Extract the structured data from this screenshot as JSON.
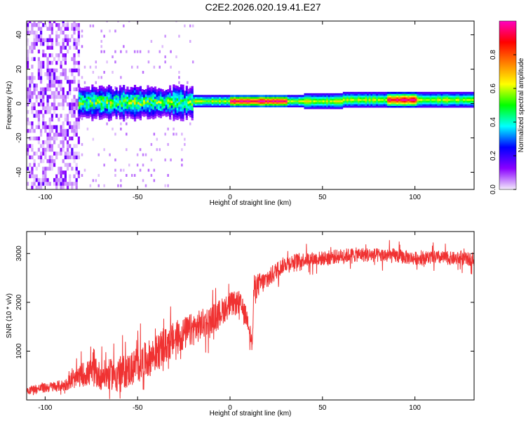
{
  "title": "C2E2.2026.020.19.41.E27",
  "chart_data": [
    {
      "type": "heatmap",
      "xlabel": "Height of straight line (km)",
      "ylabel": "Frequency (Hz)",
      "xlim": [
        -110,
        132
      ],
      "ylim": [
        -50,
        48
      ],
      "x_ticks": [
        -100,
        -50,
        0,
        50,
        100
      ],
      "y_ticks": [
        -40,
        -20,
        0,
        20,
        40
      ],
      "grid": false,
      "colorbar": {
        "label": "Normalized spectral amplitude",
        "range": [
          0,
          1
        ],
        "ticks": [
          0.0,
          0.2,
          0.4,
          0.6,
          0.8
        ],
        "colormap": "rainbow",
        "colors": [
          "#f4ecfb",
          "#8a00ff",
          "#0000ff",
          "#00ffff",
          "#00ff00",
          "#ffff00",
          "#ff8000",
          "#ff0000",
          "#ff00c0"
        ]
      },
      "features": {
        "noise_region_km": [
          -110,
          -82
        ],
        "noise_freq_hz": [
          -50,
          48
        ],
        "wide_band_km": [
          -82,
          -20
        ],
        "wide_band_halfwidth_hz": 8,
        "narrow_line_km": [
          -20,
          132
        ],
        "narrow_line_freq_hz": 1,
        "strong_segments_km": [
          [
            0,
            30
          ],
          [
            85,
            100
          ]
        ]
      }
    },
    {
      "type": "line",
      "xlabel": "Height of straight line (km)",
      "ylabel": "SNR (10 * v/v)",
      "xlim": [
        -110,
        132
      ],
      "ylim": [
        0,
        3450
      ],
      "x_ticks": [
        -100,
        -50,
        0,
        50,
        100
      ],
      "y_ticks": [
        1000,
        2000,
        3000
      ],
      "grid": false,
      "color": "#f03232",
      "series": [
        {
          "x": [
            -110,
            -100,
            -90,
            -85,
            -80,
            -75,
            -70,
            -65,
            -60,
            -55,
            -50,
            -45,
            -40,
            -35,
            -30,
            -25,
            -20,
            -15,
            -10,
            -5,
            0,
            5,
            10,
            12,
            13,
            15,
            20,
            25,
            30,
            40,
            50,
            60,
            70,
            80,
            90,
            100,
            110,
            120,
            132
          ],
          "y": [
            200,
            250,
            300,
            380,
            520,
            560,
            500,
            520,
            560,
            600,
            720,
            820,
            950,
            1100,
            1250,
            1350,
            1450,
            1550,
            1650,
            1800,
            1950,
            2000,
            1600,
            1100,
            2300,
            2350,
            2450,
            2650,
            2800,
            2880,
            2900,
            2950,
            2980,
            2960,
            2950,
            2900,
            2920,
            2900,
            2880
          ],
          "noise_amplitude": [
            90,
            100,
            120,
            150,
            250,
            280,
            300,
            320,
            340,
            360,
            380,
            380,
            380,
            370,
            360,
            350,
            340,
            320,
            300,
            280,
            260,
            240,
            200,
            150,
            280,
            250,
            200,
            180,
            160,
            150,
            150,
            150,
            150,
            150,
            150,
            140,
            140,
            140,
            140
          ]
        }
      ]
    }
  ]
}
